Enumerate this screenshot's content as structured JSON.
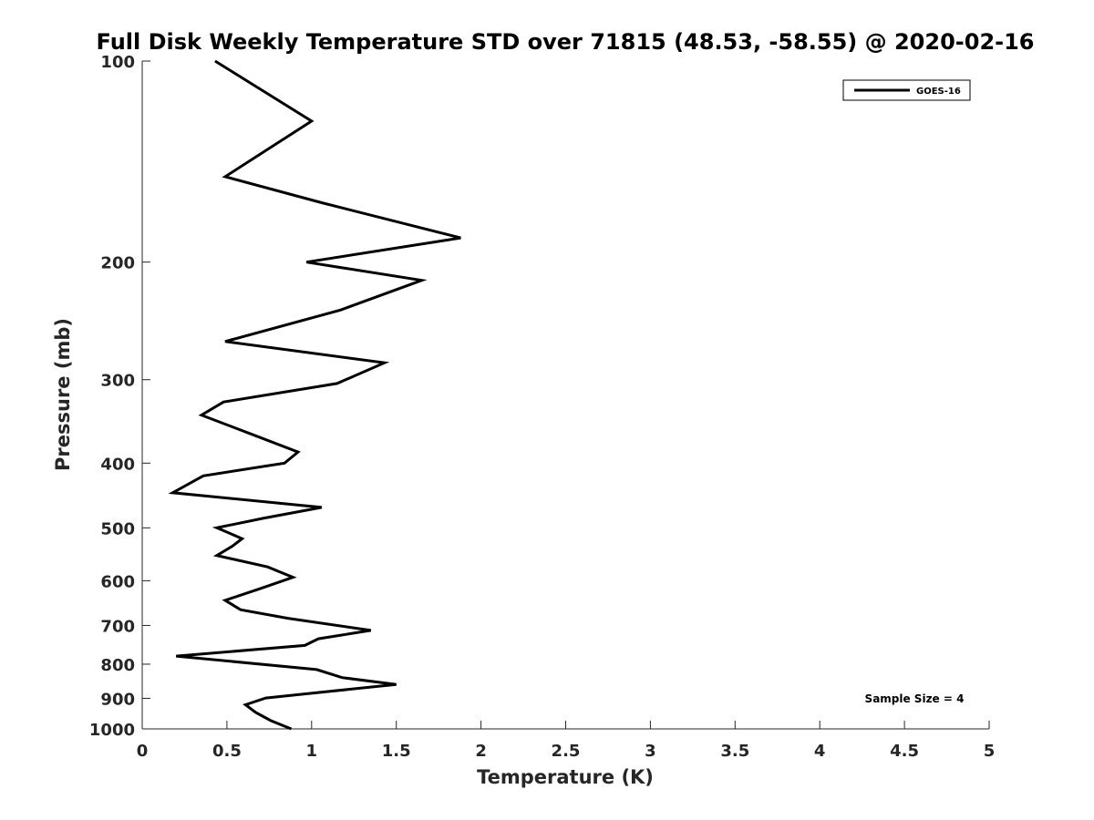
{
  "chart_data": {
    "type": "line",
    "title": "Full Disk Weekly Temperature STD over 71815 (48.53, -58.55) @ 2020-02-16",
    "xlabel": "Temperature (K)",
    "ylabel": "Pressure (mb)",
    "xlim": [
      0,
      5
    ],
    "ylim": [
      1000,
      100
    ],
    "y_scale": "log",
    "y_reversed": true,
    "grid": false,
    "legend_position": "top-right",
    "x_ticks": [
      "0",
      "0.5",
      "1",
      "1.5",
      "2",
      "2.5",
      "3",
      "3.5",
      "4",
      "4.5",
      "5"
    ],
    "y_ticks": [
      "100",
      "200",
      "300",
      "400",
      "500",
      "600",
      "700",
      "800",
      "900",
      "1000"
    ],
    "series": [
      {
        "name": "GOES-16",
        "color": "#000000",
        "x": [
          0.43,
          1.0,
          0.49,
          1.06,
          1.88,
          0.97,
          1.65,
          1.17,
          0.49,
          1.43,
          1.15,
          0.48,
          0.35,
          0.67,
          0.92,
          0.84,
          0.36,
          0.18,
          1.06,
          0.71,
          0.44,
          0.59,
          0.53,
          0.44,
          0.74,
          0.89,
          0.7,
          0.49,
          0.58,
          0.86,
          1.35,
          1.04,
          0.96,
          0.2,
          1.03,
          1.18,
          1.5,
          0.73,
          0.61,
          0.67,
          0.76,
          0.88
        ],
        "y": [
          100,
          123,
          149,
          163,
          184,
          200,
          213,
          236,
          263,
          283,
          304,
          324,
          339,
          364,
          385,
          400,
          418,
          443,
          466,
          484,
          500,
          519,
          533,
          550,
          572,
          593,
          616,
          642,
          663,
          683,
          712,
          733,
          750,
          778,
          815,
          838,
          858,
          899,
          920,
          945,
          972,
          1000
        ]
      }
    ],
    "annotations": [
      "Sample Size = 4"
    ]
  }
}
